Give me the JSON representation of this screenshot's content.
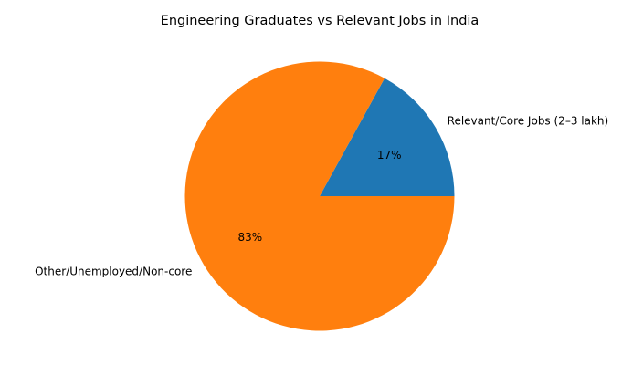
{
  "chart_data": {
    "type": "pie",
    "title": "Engineering Graduates vs Relevant Jobs in India",
    "categories": [
      "Relevant/Core Jobs (2–3 lakh)",
      "Other/Unemployed/Non-core"
    ],
    "values": [
      17,
      83
    ],
    "autopct_labels": [
      "17%",
      "83%"
    ],
    "colors": [
      "#1f77b4",
      "#ff7f0e"
    ],
    "start_angle": 0,
    "legend": null
  }
}
